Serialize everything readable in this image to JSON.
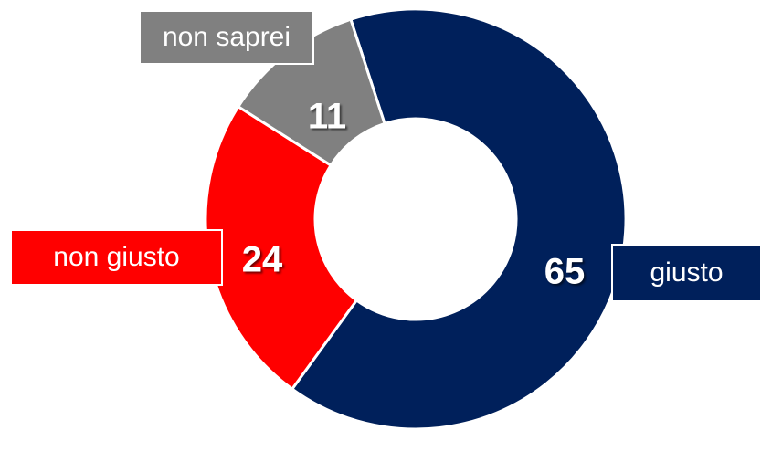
{
  "chart_data": {
    "type": "donut",
    "categories": [
      "giusto",
      "non giusto",
      "non saprei"
    ],
    "values": [
      65,
      24,
      11
    ],
    "colors": [
      "#00205b",
      "#ff0000",
      "#808080"
    ]
  }
}
